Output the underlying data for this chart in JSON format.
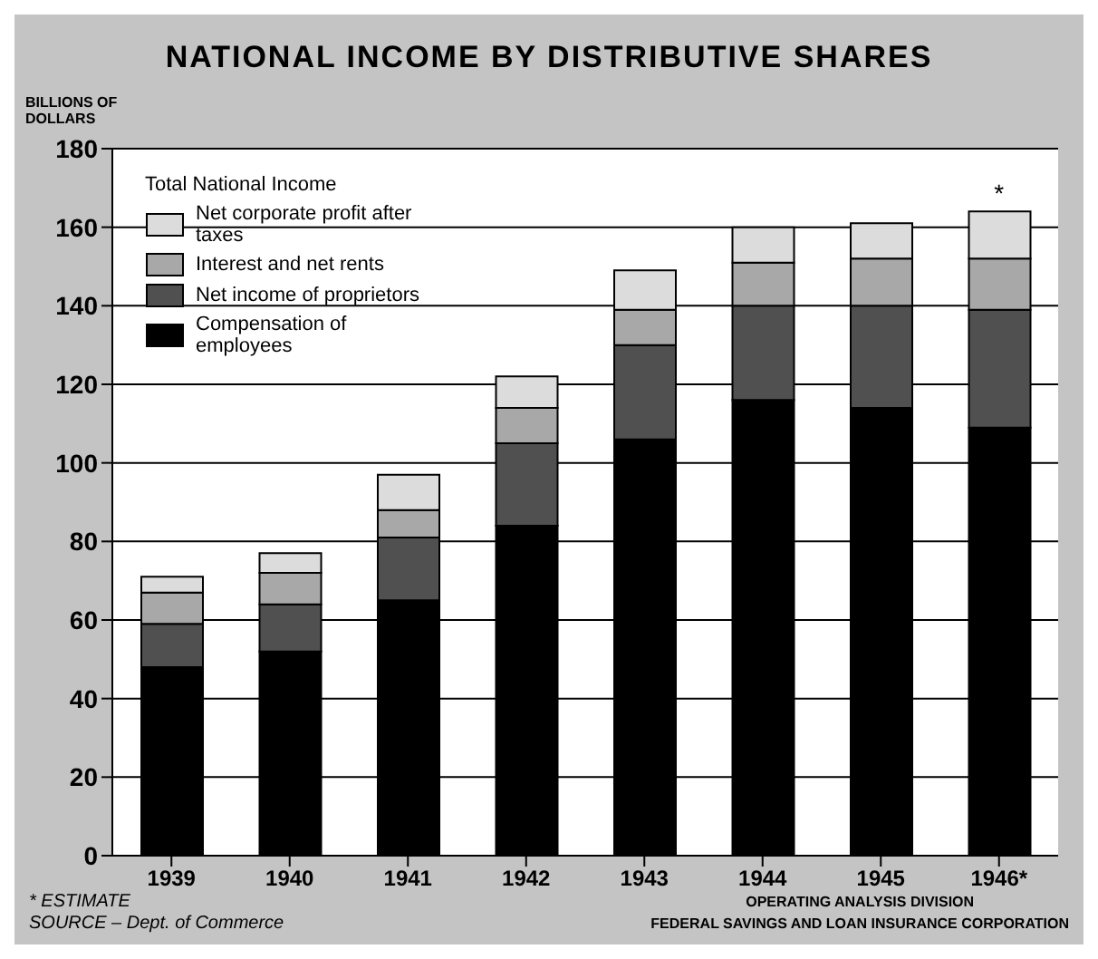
{
  "chart_data": {
    "type": "bar",
    "title": "NATIONAL INCOME BY DISTRIBUTIVE SHARES",
    "ylabel": "BILLIONS OF DOLLARS",
    "legend_title": "Total National Income",
    "categories": [
      "1939",
      "1940",
      "1941",
      "1942",
      "1943",
      "1944",
      "1945",
      "1946*"
    ],
    "stacked": true,
    "series": [
      {
        "name": "Compensation of employees",
        "color": "#000000",
        "values": [
          48,
          52,
          65,
          84,
          106,
          116,
          114,
          109
        ]
      },
      {
        "name": "Net income of proprietors",
        "color": "#505050",
        "values": [
          11,
          12,
          16,
          21,
          24,
          24,
          26,
          30
        ]
      },
      {
        "name": "Interest and net rents",
        "color": "#a8a8a8",
        "values": [
          8,
          8,
          7,
          9,
          9,
          11,
          12,
          13
        ]
      },
      {
        "name": "Net corporate profit after taxes",
        "color": "#dcdcdc",
        "values": [
          4,
          5,
          9,
          8,
          10,
          9,
          9,
          12
        ]
      }
    ],
    "ylim": [
      0,
      180
    ],
    "yticks": [
      0,
      20,
      40,
      60,
      80,
      100,
      120,
      140,
      160,
      180
    ],
    "grid": "y",
    "legend": "top left",
    "annotations": [
      {
        "text": "*",
        "x": "1946*",
        "y": 164
      },
      "* ESTIMATE",
      "SOURCE – Dept. of Commerce",
      "OPERATING ANALYSIS DIVISION",
      "FEDERAL SAVINGS AND LOAN INSURANCE CORPORATION"
    ]
  }
}
